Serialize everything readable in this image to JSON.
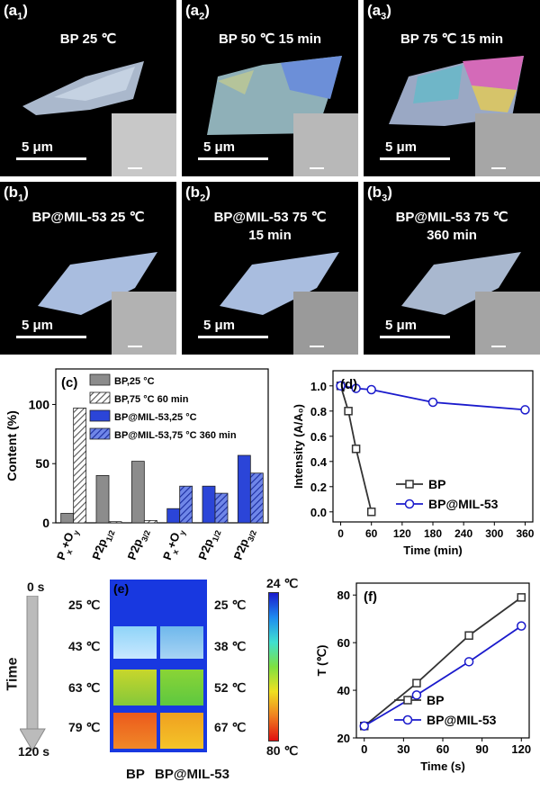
{
  "panels_a": [
    {
      "tag": "a",
      "sub": "1",
      "title_line1": "BP 25 ℃",
      "title_line2": "",
      "scale": "5 μm"
    },
    {
      "tag": "a",
      "sub": "2",
      "title_line1": "BP 50 ℃ 15 min",
      "title_line2": "",
      "scale": "5 μm"
    },
    {
      "tag": "a",
      "sub": "3",
      "title_line1": "BP 75 ℃ 15 min",
      "title_line2": "",
      "scale": "5 μm"
    }
  ],
  "panels_b": [
    {
      "tag": "b",
      "sub": "1",
      "title_line1": "BP@MIL-53  25 ℃",
      "title_line2": "",
      "scale": "5 μm"
    },
    {
      "tag": "b",
      "sub": "2",
      "title_line1": "BP@MIL-53 75 ℃",
      "title_line2": "15 min",
      "scale": "5 μm"
    },
    {
      "tag": "b",
      "sub": "3",
      "title_line1": "BP@MIL-53 75 ℃",
      "title_line2": "360 min",
      "scale": "5 μm"
    }
  ],
  "chart_data": [
    {
      "id": "c",
      "type": "bar",
      "panel_label": "(c)",
      "ylabel": "Content  (%)",
      "ylim": [
        0,
        130
      ],
      "yticks": [
        0,
        50,
        100
      ],
      "categories": [
        {
          "main": "P",
          "sub": "x",
          "pre": "",
          "post": "O",
          "sub2": "y",
          "plus": "+"
        },
        {
          "main": "P2p",
          "sub": "1/2"
        },
        {
          "main": "P2p",
          "sub": "3/2"
        },
        {
          "main": "P",
          "sub": "x",
          "post": "O",
          "sub2": "y",
          "plus": "+"
        },
        {
          "main": "P2p",
          "sub": "1/2"
        },
        {
          "main": "P2p",
          "sub": "3/2"
        }
      ],
      "series": [
        {
          "name": "BP,25 °C",
          "color": "#8c8c8c",
          "hatch": false,
          "values": [
            8,
            40,
            52,
            null,
            null,
            null
          ]
        },
        {
          "name": "BP,75 °C 60 min",
          "color": "#8c8c8c",
          "hatch": true,
          "values": [
            97,
            1,
            2,
            null,
            null,
            null
          ]
        },
        {
          "name": "BP@MIL-53,25 °C",
          "color": "#2b45d8",
          "hatch": false,
          "values": [
            null,
            null,
            null,
            12,
            31,
            57
          ]
        },
        {
          "name": "BP@MIL-53,75 °C 360 min",
          "color": "#2b45d8",
          "hatch": true,
          "values": [
            null,
            null,
            null,
            31,
            25,
            42
          ]
        }
      ]
    },
    {
      "id": "d",
      "type": "line",
      "panel_label": "(d)",
      "xlabel": "Time (min)",
      "ylabel": "Intensity (A/A₀)",
      "xlim": [
        -15,
        375
      ],
      "ylim": [
        -0.08,
        1.12
      ],
      "xticks": [
        0,
        60,
        120,
        180,
        240,
        300,
        360
      ],
      "yticks": [
        0.0,
        0.2,
        0.4,
        0.6,
        0.8,
        1.0
      ],
      "series": [
        {
          "name": "BP",
          "color": "#333333",
          "marker": "square",
          "x": [
            0,
            15,
            30,
            60
          ],
          "y": [
            1.0,
            0.8,
            0.5,
            0.0
          ]
        },
        {
          "name": "BP@MIL-53",
          "color": "#1a1acc",
          "marker": "circle",
          "x": [
            0,
            30,
            60,
            180,
            360
          ],
          "y": [
            1.0,
            0.98,
            0.97,
            0.87,
            0.81
          ]
        }
      ]
    },
    {
      "id": "f",
      "type": "line",
      "panel_label": "(f)",
      "xlabel": "Time (s)",
      "ylabel": "T (℃)",
      "xlim": [
        -6,
        126
      ],
      "ylim": [
        20,
        85
      ],
      "xticks": [
        0,
        30,
        60,
        90,
        120
      ],
      "yticks": [
        20,
        40,
        60,
        80
      ],
      "series": [
        {
          "name": "BP",
          "color": "#333333",
          "marker": "square",
          "x": [
            0,
            40,
            80,
            120
          ],
          "y": [
            25,
            43,
            63,
            79
          ]
        },
        {
          "name": "BP@MIL-53",
          "color": "#1a1acc",
          "marker": "circle",
          "x": [
            0,
            40,
            80,
            120
          ],
          "y": [
            25,
            38,
            52,
            67
          ]
        }
      ]
    }
  ],
  "panel_e": {
    "label": "(e)",
    "time_start": "0 s",
    "time_end": "120 s",
    "time_label": "Time",
    "bp_temps": [
      "25 ℃",
      "43 ℃",
      "63 ℃",
      "79 ℃"
    ],
    "mil_temps": [
      "25 ℃",
      "38 ℃",
      "52 ℃",
      "67 ℃"
    ],
    "scale_top": "24 ℃",
    "scale_bottom": "80 ℃",
    "xlabel_bp": "BP",
    "xlabel_mil": "BP@MIL-53"
  }
}
